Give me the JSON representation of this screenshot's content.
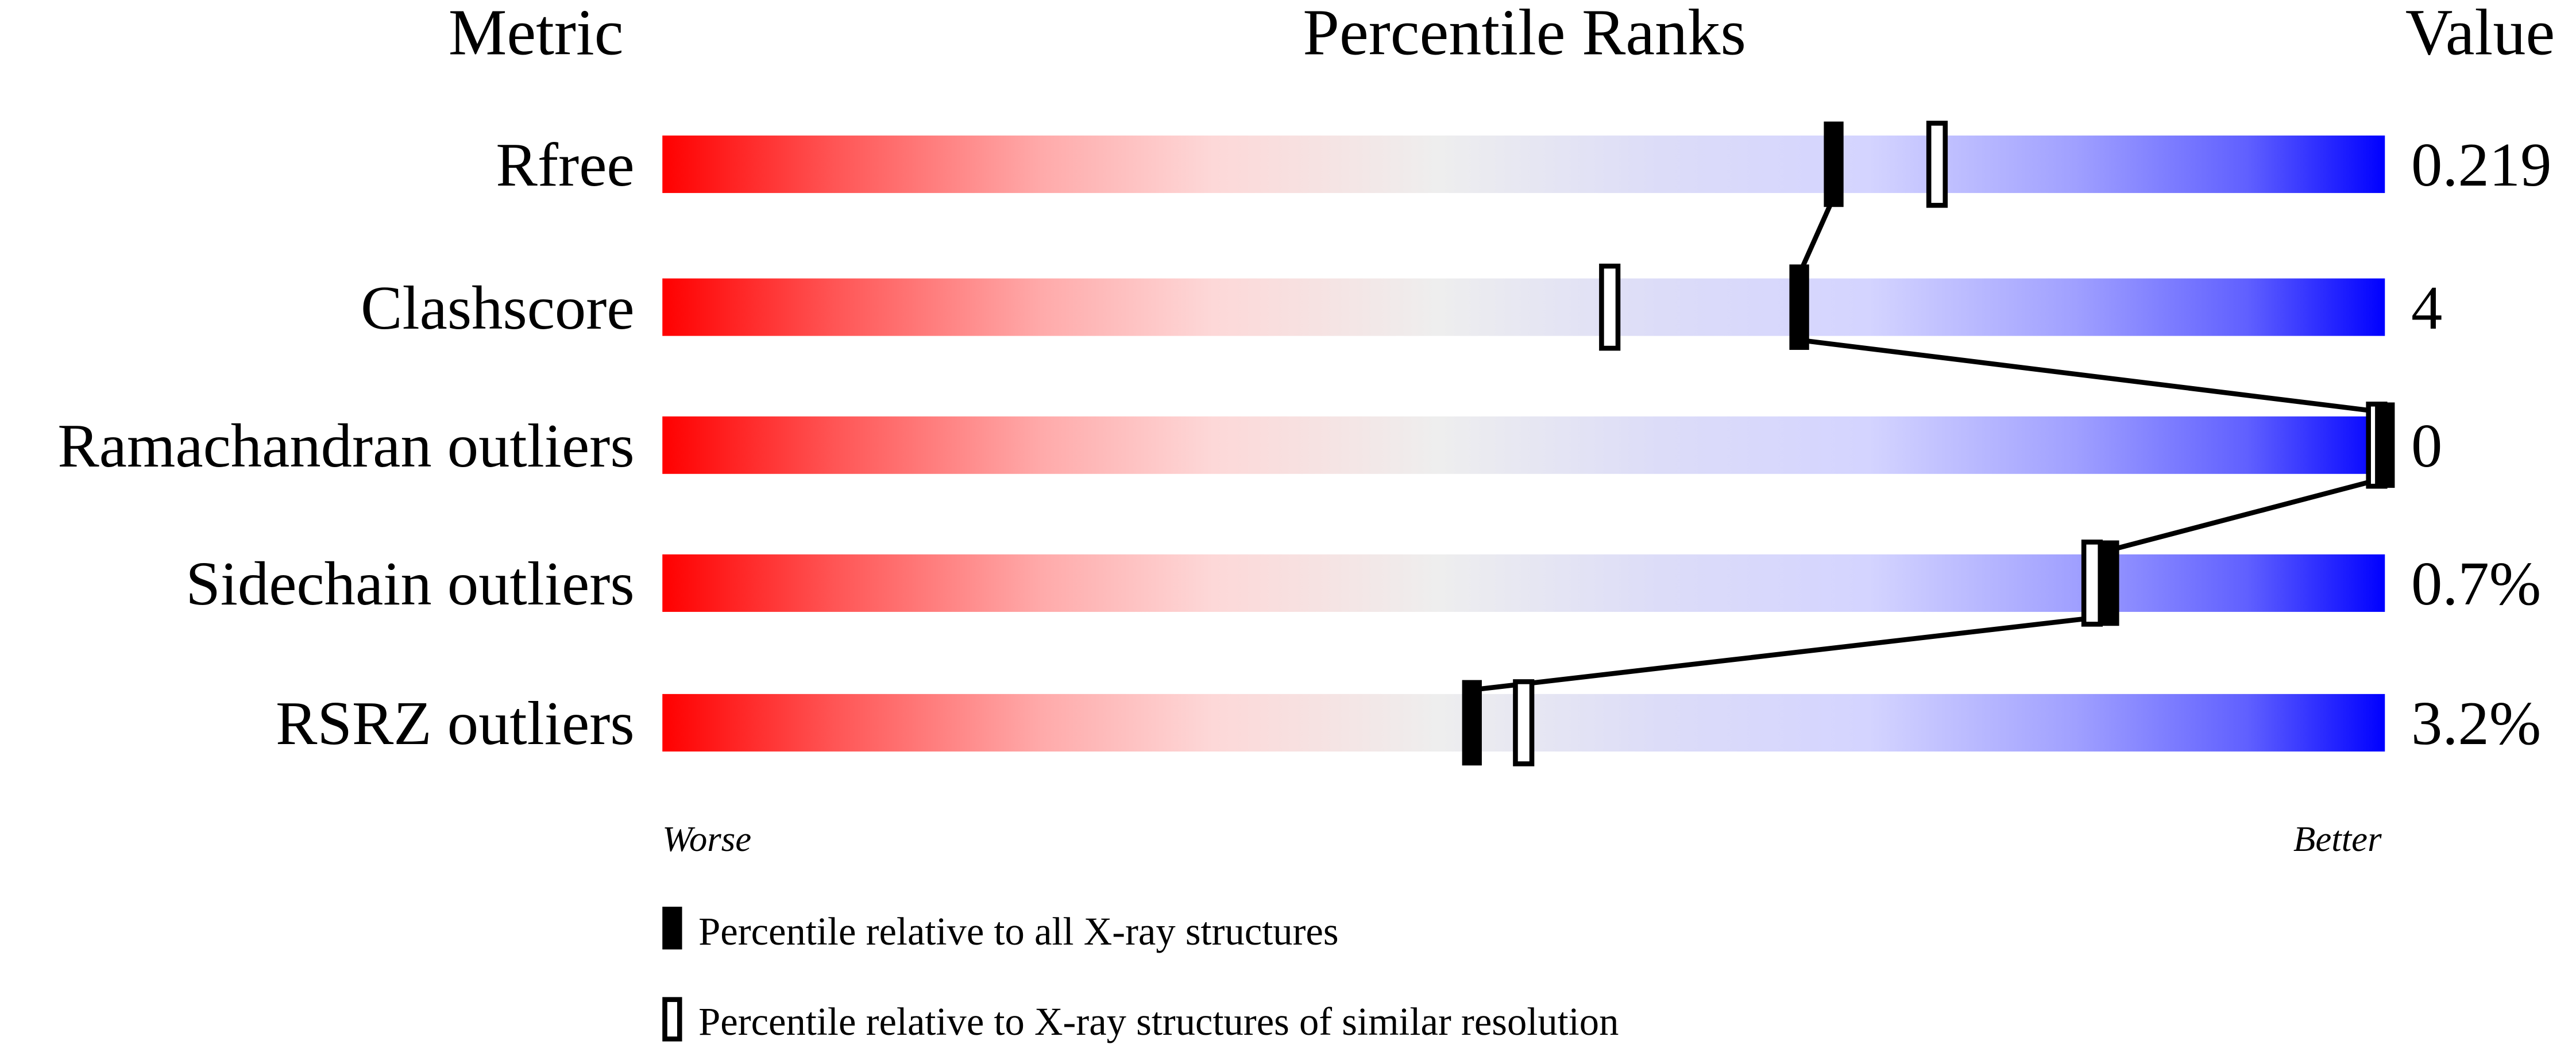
{
  "chart_data": {
    "type": "bar",
    "headers": {
      "metric": "Metric",
      "ranks": "Percentile Ranks",
      "value": "Value"
    },
    "x_range": [
      0,
      100
    ],
    "axis_labels": {
      "left": "Worse",
      "right": "Better"
    },
    "gradient_colors": [
      "#ff0000",
      "#eeeeee",
      "#0000ff"
    ],
    "rows": [
      {
        "metric": "Rfree",
        "value": "0.219",
        "percentile_all": 68,
        "percentile_similar": 74
      },
      {
        "metric": "Clashscore",
        "value": "4",
        "percentile_all": 66,
        "percentile_similar": 55
      },
      {
        "metric": "Ramachandran outliers",
        "value": "0",
        "percentile_all": 100,
        "percentile_similar": 100
      },
      {
        "metric": "Sidechain outliers",
        "value": "0.7%",
        "percentile_all": 84,
        "percentile_similar": 83
      },
      {
        "metric": "RSRZ outliers",
        "value": "3.2%",
        "percentile_all": 47,
        "percentile_similar": 50
      }
    ],
    "legend": [
      {
        "marker": "filled",
        "label": "Percentile relative to all X-ray structures"
      },
      {
        "marker": "open",
        "label": "Percentile relative to X-ray structures of similar resolution"
      }
    ]
  }
}
